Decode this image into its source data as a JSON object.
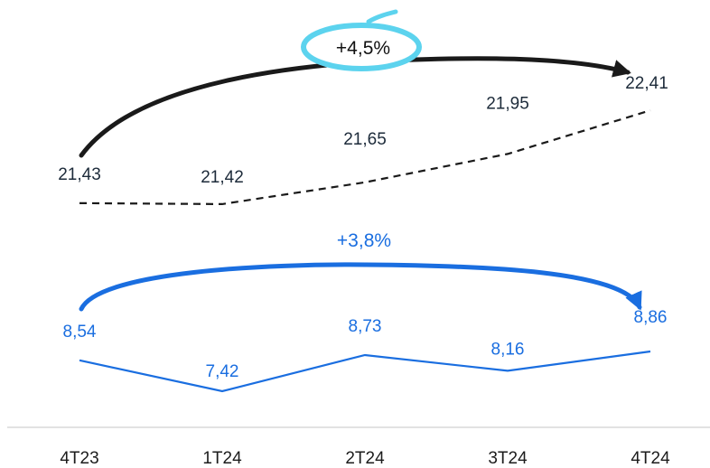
{
  "chart_data": {
    "type": "line",
    "categories": [
      "4T23",
      "1T24",
      "2T24",
      "3T24",
      "4T24"
    ],
    "series": [
      {
        "values": [
          21.43,
          21.42,
          21.65,
          21.95,
          22.41
        ],
        "value_labels": [
          "21,43",
          "21,42",
          "21,65",
          "21,95",
          "22,41"
        ],
        "color": "#1a1a1a",
        "label_color": "#1d2b3a",
        "line_style": "dashed",
        "change_label": "+4,5%",
        "change_highlight_color": "#5cd3ee"
      },
      {
        "values": [
          8.54,
          7.42,
          8.73,
          8.16,
          8.86
        ],
        "value_labels": [
          "8,54",
          "7,42",
          "8,73",
          "8,16",
          "8,86"
        ],
        "color": "#1a6ee0",
        "label_color": "#1a6ee0",
        "line_style": "solid",
        "change_label": "+3,8%"
      }
    ],
    "axis_line_color": "#d9d9d9",
    "grid": false,
    "legend": "none"
  }
}
